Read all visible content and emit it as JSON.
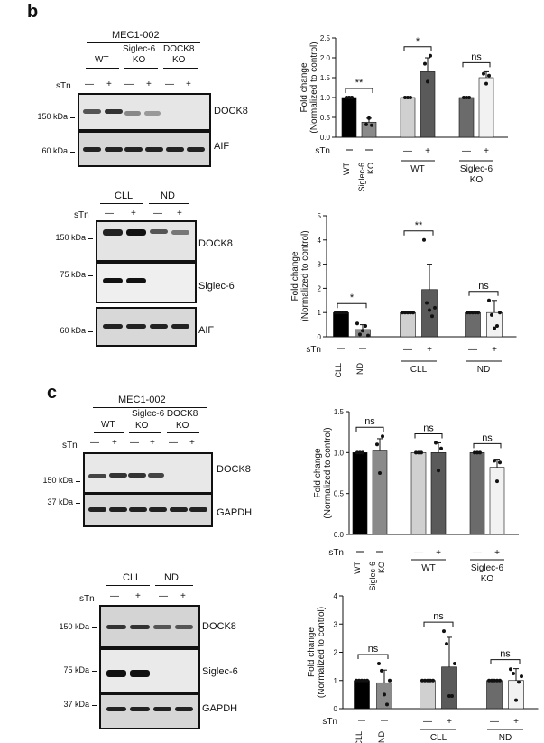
{
  "panels": {
    "b": "b",
    "c": "c"
  },
  "blots": {
    "mec_title": "MEC1-002",
    "groups": [
      "WT",
      "Siglec-6\nKO",
      "DOCK8\nKO"
    ],
    "sTn_label": "sTn",
    "sTn_signs": [
      "—",
      "+",
      "—",
      "+",
      "—",
      "+"
    ],
    "cll_signs": [
      "—",
      "+",
      "—",
      "+"
    ],
    "cll_groups": [
      "CLL",
      "ND"
    ],
    "proteins": {
      "dock8": "DOCK8",
      "aif": "AIF",
      "siglec6": "Siglec-6",
      "gapdh": "GAPDH"
    },
    "mw": {
      "kda150": "150 kDa",
      "kda60": "60 kDa",
      "kda75": "75 kDa",
      "kda37": "37 kDa"
    }
  },
  "chart_data": [
    {
      "type": "bar",
      "ylabel": "Fold change\n(Normalized to control)",
      "ylim": [
        0,
        2.5
      ],
      "yticks": [
        "0.0",
        "0.5",
        "1.0",
        "1.5",
        "2.0",
        "2.5"
      ],
      "categories": [
        "WT",
        "Siglec-6 KO",
        "WT —",
        "WT +",
        "Siglec-6 KO —",
        "Siglec-6 KO +"
      ],
      "values": [
        1.0,
        0.38,
        1.0,
        1.65,
        1.0,
        1.5
      ],
      "errors": [
        0,
        0.1,
        0,
        0.35,
        0,
        0.15
      ],
      "points": [
        [
          1,
          1,
          1
        ],
        [
          0.32,
          0.48,
          0.3
        ],
        [
          1,
          1,
          1
        ],
        [
          1.85,
          1.4,
          2.05
        ],
        [
          1,
          1,
          1
        ],
        [
          1.6,
          1.35,
          1.55
        ]
      ],
      "colors": [
        "#000000",
        "#8a8a8a",
        "#d0d0d0",
        "#5a5a5a",
        "#6b6b6b",
        "#f2f2f2"
      ],
      "significance": [
        "**",
        "*",
        "ns"
      ],
      "group_labels": [
        "WT",
        "Siglec-6\nKO"
      ],
      "x_labels": [
        "WT",
        "Siglec-6\nKO"
      ]
    },
    {
      "type": "bar",
      "ylabel": "Fold change\n(Normalized to control)",
      "ylim": [
        0,
        5
      ],
      "yticks": [
        "0",
        "1",
        "2",
        "3",
        "4",
        "5"
      ],
      "categories": [
        "CLL",
        "ND",
        "CLL —",
        "CLL +",
        "ND —",
        "ND +"
      ],
      "values": [
        1.0,
        0.3,
        1.0,
        1.95,
        1.0,
        1.0
      ],
      "errors": [
        0,
        0.2,
        0,
        1.05,
        0,
        0.5
      ],
      "points": [
        [
          1,
          1,
          1,
          1,
          1
        ],
        [
          0.55,
          0.1,
          0.25,
          0.45,
          0.05
        ],
        [
          1,
          1,
          1,
          1,
          1
        ],
        [
          4.0,
          1.4,
          1.1,
          0.85,
          1.2
        ],
        [
          1,
          1,
          1,
          1,
          1
        ],
        [
          1.5,
          0.9,
          0.35,
          0.45,
          1.0
        ]
      ],
      "colors": [
        "#000000",
        "#8a8a8a",
        "#d0d0d0",
        "#5a5a5a",
        "#6b6b6b",
        "#f2f2f2"
      ],
      "significance": [
        "*",
        "**",
        "ns"
      ],
      "group_labels": [
        "CLL",
        "ND"
      ],
      "x_labels": [
        "CLL",
        "ND"
      ]
    },
    {
      "type": "bar",
      "ylabel": "Fold change\n(Normalized to control)",
      "ylim": [
        0,
        1.5
      ],
      "yticks": [
        "0.0",
        "0.5",
        "1.0",
        "1.5"
      ],
      "categories": [
        "WT",
        "Siglec-6 KO",
        "WT —",
        "WT +",
        "Siglec-6 KO —",
        "Siglec-6 KO +"
      ],
      "values": [
        1.0,
        1.02,
        1.0,
        1.0,
        1.0,
        0.82
      ],
      "errors": [
        0,
        0.15,
        0,
        0.12,
        0,
        0.1
      ],
      "points": [
        [
          1,
          1,
          1
        ],
        [
          1.1,
          0.75,
          1.2
        ],
        [
          1,
          1,
          1
        ],
        [
          1.12,
          0.78,
          1.05
        ],
        [
          1,
          1,
          1
        ],
        [
          0.9,
          0.65,
          0.88
        ]
      ],
      "colors": [
        "#000000",
        "#8a8a8a",
        "#d0d0d0",
        "#5a5a5a",
        "#6b6b6b",
        "#f2f2f2"
      ],
      "significance": [
        "ns",
        "ns",
        "ns"
      ],
      "group_labels": [
        "WT",
        "Siglec-6\nKO"
      ],
      "x_labels": [
        "WT",
        "Siglec-6\nKO"
      ]
    },
    {
      "type": "bar",
      "ylabel": "Fold change\n(Normalized to control)",
      "ylim": [
        0,
        4
      ],
      "yticks": [
        "0",
        "1",
        "2",
        "3",
        "4"
      ],
      "categories": [
        "CLL",
        "ND",
        "CLL —",
        "CLL +",
        "ND —",
        "ND +"
      ],
      "values": [
        1.0,
        0.92,
        1.0,
        1.48,
        1.0,
        1.0
      ],
      "errors": [
        0,
        0.45,
        0,
        1.05,
        0,
        0.42
      ],
      "points": [
        [
          1,
          1,
          1,
          1,
          1
        ],
        [
          1.6,
          1.35,
          0.5,
          0.15,
          1.0
        ],
        [
          1,
          1,
          1,
          1,
          1
        ],
        [
          2.75,
          2.3,
          0.45,
          0.45,
          1.6
        ],
        [
          1,
          1,
          1,
          1,
          1
        ],
        [
          1.4,
          1.25,
          0.3,
          0.95,
          1.15
        ]
      ],
      "colors": [
        "#000000",
        "#8a8a8a",
        "#d0d0d0",
        "#5a5a5a",
        "#6b6b6b",
        "#f2f2f2"
      ],
      "significance": [
        "ns",
        "ns",
        "ns"
      ],
      "group_labels": [
        "CLL",
        "ND"
      ],
      "x_labels": [
        "CLL",
        "ND"
      ]
    }
  ]
}
